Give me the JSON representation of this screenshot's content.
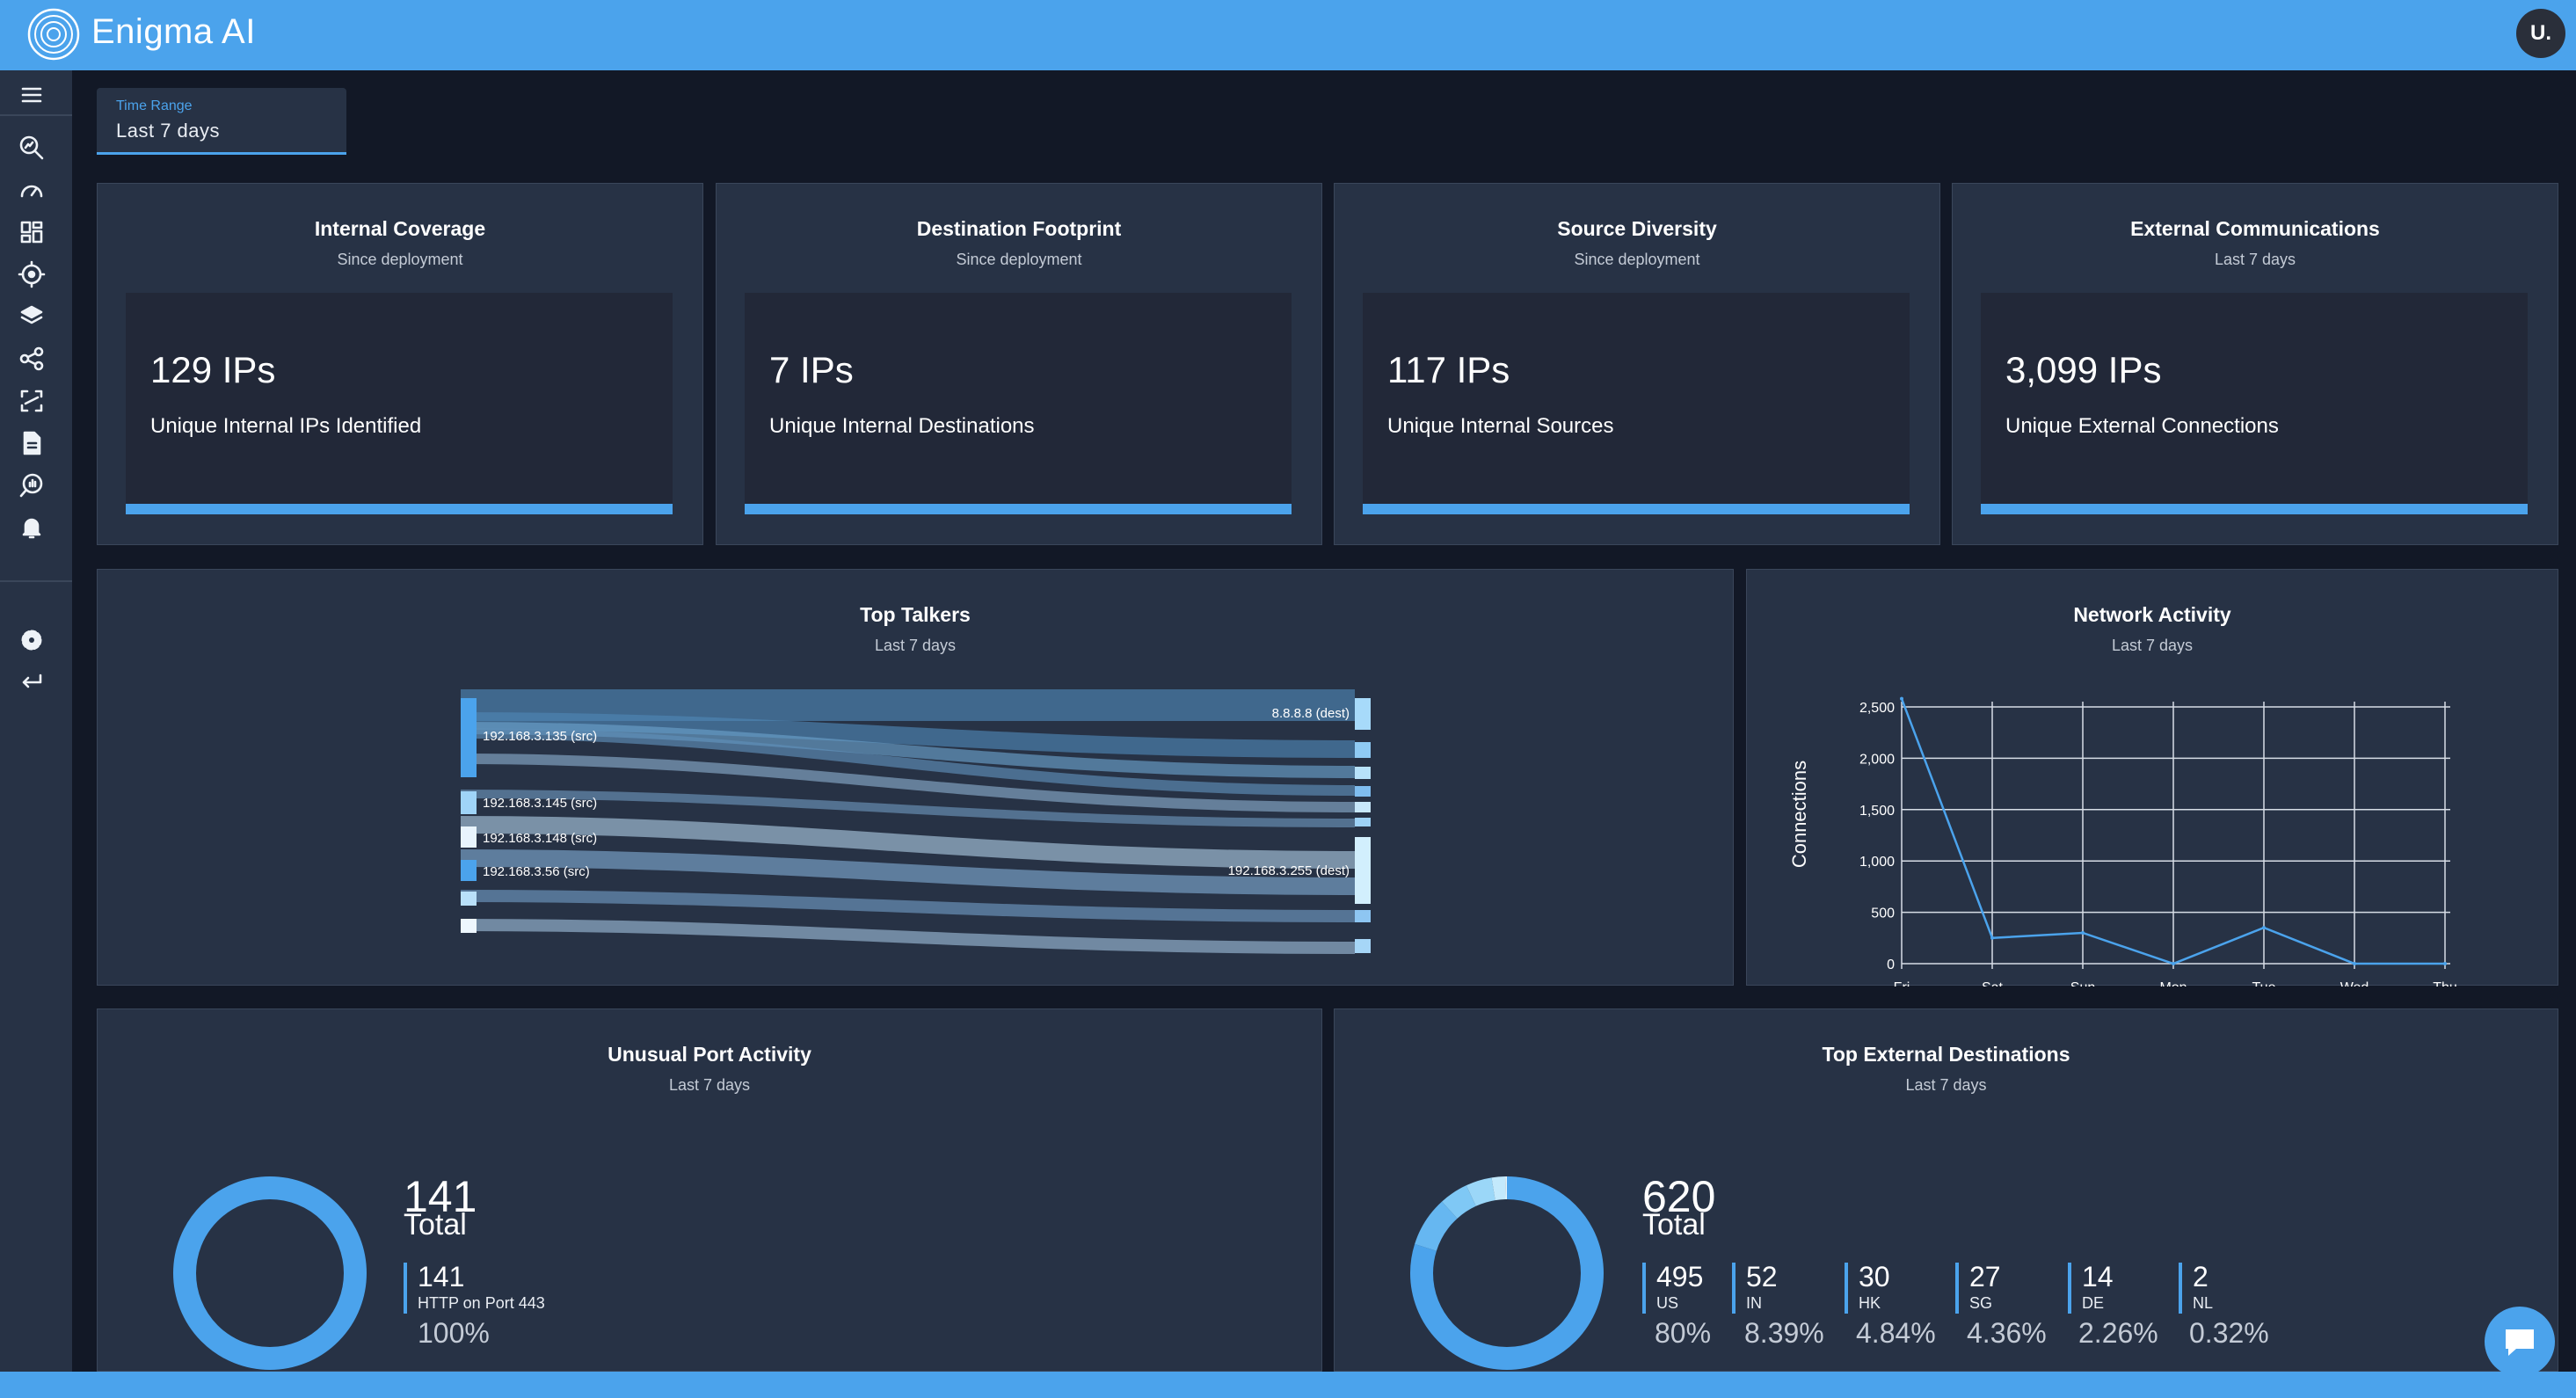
{
  "app": {
    "title": "Enigma AI",
    "user_initial": "U."
  },
  "sidebar": {
    "items": [
      {
        "icon": "menu-icon"
      },
      {
        "icon": "search-analytics-icon"
      },
      {
        "icon": "speedometer-icon"
      },
      {
        "icon": "dashboard-grid-icon"
      },
      {
        "icon": "crosshair-icon"
      },
      {
        "icon": "layers-icon"
      },
      {
        "icon": "share-nodes-icon"
      },
      {
        "icon": "scan-icon"
      },
      {
        "icon": "document-icon"
      },
      {
        "icon": "query-stats-icon"
      },
      {
        "icon": "bell-icon"
      },
      {
        "icon": "gear-icon"
      },
      {
        "icon": "logout-arrow-icon"
      }
    ]
  },
  "time_range": {
    "label": "Time Range",
    "value": "Last 7 days"
  },
  "stats": [
    {
      "title": "Internal Coverage",
      "subtitle": "Since deployment",
      "value": "129 IPs",
      "desc": "Unique Internal IPs Identified"
    },
    {
      "title": "Destination Footprint",
      "subtitle": "Since deployment",
      "value": "7 IPs",
      "desc": "Unique Internal Destinations"
    },
    {
      "title": "Source Diversity",
      "subtitle": "Since deployment",
      "value": "117 IPs",
      "desc": "Unique Internal Sources"
    },
    {
      "title": "External Communications",
      "subtitle": "Last 7 days",
      "value": "3,099 IPs",
      "desc": "Unique External Connections"
    }
  ],
  "top_talkers": {
    "title": "Top Talkers",
    "subtitle": "Last 7 days",
    "sources": [
      "192.168.3.135 (src)",
      "192.168.3.145 (src)",
      "192.168.3.148 (src)",
      "192.168.3.56 (src)"
    ],
    "destinations": [
      "8.8.8.8 (dest)",
      "192.168.3.255 (dest)"
    ]
  },
  "network_activity": {
    "title": "Network Activity",
    "subtitle": "Last 7 days",
    "ylabel": "Connections",
    "yticks": [
      "0",
      "500",
      "1,000",
      "1,500",
      "2,000",
      "2,500"
    ],
    "xticks": [
      "Fri",
      "Sat",
      "Sun",
      "Mon",
      "Tue",
      "Wed",
      "Thu"
    ]
  },
  "unusual_ports": {
    "title": "Unusual Port Activity",
    "subtitle": "Last 7 days",
    "total": "141",
    "total_label": "Total",
    "items": [
      {
        "count": "141",
        "label": "HTTP on Port 443",
        "pct": "100%"
      }
    ]
  },
  "external_destinations": {
    "title": "Top External Destinations",
    "subtitle": "Last 7 days",
    "total": "620",
    "total_label": "Total",
    "items": [
      {
        "count": "495",
        "label": "US",
        "pct": "80%"
      },
      {
        "count": "52",
        "label": "IN",
        "pct": "8.39%"
      },
      {
        "count": "30",
        "label": "HK",
        "pct": "4.84%"
      },
      {
        "count": "27",
        "label": "SG",
        "pct": "4.36%"
      },
      {
        "count": "14",
        "label": "DE",
        "pct": "2.26%"
      },
      {
        "count": "2",
        "label": "NL",
        "pct": "0.32%"
      }
    ]
  },
  "colors": {
    "accent": "#4ba3ec",
    "card": "#273245",
    "background": "#121826"
  },
  "chart_data": [
    {
      "type": "line",
      "title": "Network Activity",
      "xlabel": "",
      "ylabel": "Connections",
      "x": [
        "Fri",
        "Sat",
        "Sun",
        "Mon",
        "Tue",
        "Wed",
        "Thu"
      ],
      "series": [
        {
          "values": [
            2580,
            250,
            300,
            0,
            350,
            0,
            0
          ]
        }
      ],
      "ylim": [
        0,
        2500
      ],
      "grid": true
    },
    {
      "type": "pie",
      "title": "Unusual Port Activity",
      "categories": [
        "HTTP on Port 443"
      ],
      "values": [
        141
      ]
    },
    {
      "type": "pie",
      "title": "Top External Destinations",
      "categories": [
        "US",
        "IN",
        "HK",
        "SG",
        "DE",
        "NL"
      ],
      "values": [
        495,
        52,
        30,
        27,
        14,
        2
      ]
    }
  ]
}
